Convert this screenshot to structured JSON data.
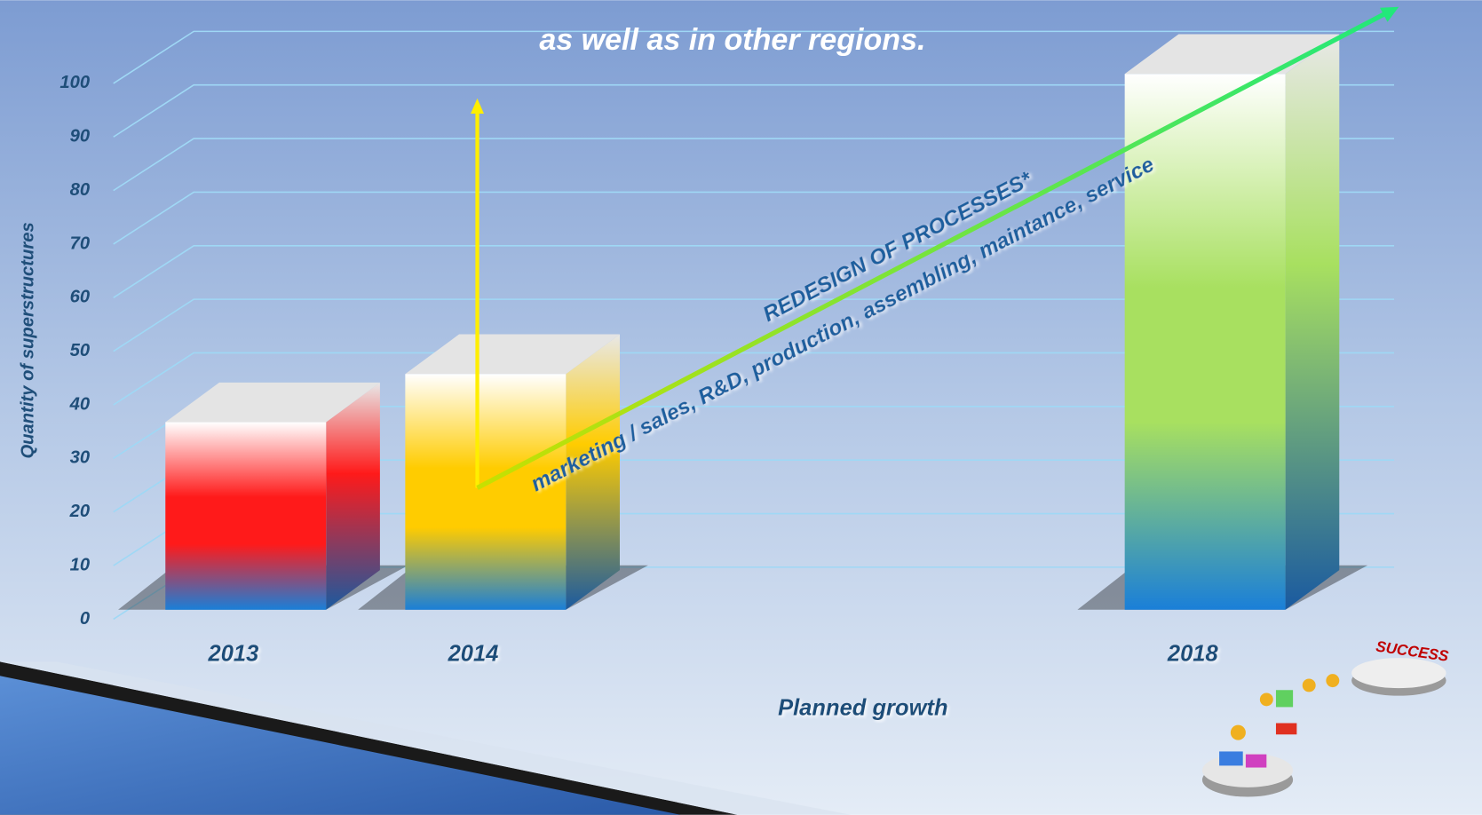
{
  "chart_data": {
    "type": "bar3d",
    "title": "as well as in other regions.",
    "y_label": "Quantity of superstructures",
    "x_label": "Planned  growth",
    "categories": [
      "2013",
      "2014",
      null,
      null,
      "2018"
    ],
    "values": [
      35,
      44,
      null,
      null,
      100
    ],
    "colors": [
      "#ff1a1a",
      "#ffcc00",
      null,
      null,
      "#a8e060"
    ],
    "ylim": [
      0,
      100
    ],
    "yticks": [
      0,
      10,
      20,
      30,
      40,
      50,
      60,
      70,
      80,
      90,
      100
    ],
    "grid": true,
    "annotations": [
      "REDESIGN OF PROCESSES*",
      "marketing / sales, R&D, production, assembling, maintance, service"
    ],
    "badge": "SUCCESS"
  }
}
